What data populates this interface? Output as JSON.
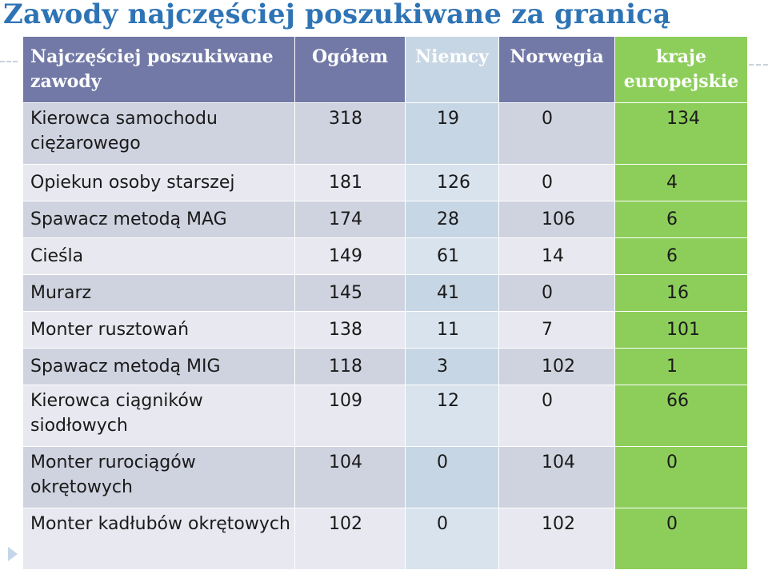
{
  "title": "Zawody najczęściej poszukiwane za granicą",
  "table": {
    "headers": [
      "Najczęściej poszukiwane zawody",
      "Ogółem",
      "Niemcy",
      "Norwegia",
      "kraje europejskie"
    ],
    "rows": [
      [
        "Kierowca samochodu ciężarowego",
        "318",
        "19",
        "0",
        "134"
      ],
      [
        "Opiekun osoby starszej",
        "181",
        "126",
        "0",
        "4"
      ],
      [
        "Spawacz metodą MAG",
        "174",
        "28",
        "106",
        "6"
      ],
      [
        "Cieśla",
        "149",
        "61",
        "14",
        "6"
      ],
      [
        "Murarz",
        "145",
        "41",
        "0",
        "16"
      ],
      [
        "Monter rusztowań",
        "138",
        "11",
        "7",
        "101"
      ],
      [
        "Spawacz metodą MIG",
        "118",
        "3",
        "102",
        "1"
      ],
      [
        "Kierowca ciągników siodłowych",
        "109",
        "12",
        "0",
        "66"
      ],
      [
        "Monter rurociągów okrętowych",
        "104",
        "0",
        "104",
        "0"
      ],
      [
        "Monter kadłubów okrętowych",
        "102",
        "0",
        "102",
        "0"
      ]
    ]
  },
  "colors": {
    "title": "#2e74b5",
    "header": "#7279a6",
    "niemcy_column": "#c7d6e4",
    "europe_column": "#8dce5b",
    "row_dark": "#cfd2df",
    "row_light": "#e8e9f0"
  }
}
